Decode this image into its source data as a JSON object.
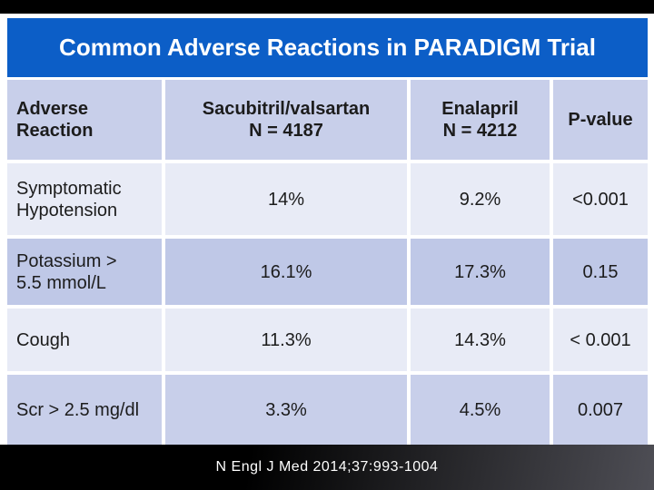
{
  "slide": {
    "title": "Common Adverse Reactions in PARADIGM Trial",
    "citation": "N Engl J Med 2014;37:993-1004"
  },
  "colors": {
    "page_bg": "#FFFFFF",
    "top_bar_bg": "#000000",
    "title_bar_bg": "#0C5EC7",
    "title_text": "#FFFFFF",
    "header_row_bg": "#C8CFEA",
    "row_light_bg": "#E8EBF6",
    "row_dark_bg": "#BFC8E7",
    "cell_text": "#1C1C1C",
    "footer_bg_left": "#000000",
    "footer_bg_right": "#4E4E55",
    "footer_text": "#FFFFFF"
  },
  "table": {
    "header": {
      "adverse_reaction": "Adverse\nReaction",
      "sacubitril": "Sacubitril/valsartan\nN = 4187",
      "enalapril": "Enalapril\nN = 4212",
      "p_value": "P-value"
    },
    "rows": [
      {
        "label": "Symptomatic\nHypotension",
        "sacubitril": "14%",
        "enalapril": "9.2%",
        "p_value": "<0.001"
      },
      {
        "label": "Potassium >\n5.5 mmol/L",
        "sacubitril": "16.1%",
        "enalapril": "17.3%",
        "p_value": "0.15"
      },
      {
        "label": "Cough",
        "sacubitril": "11.3%",
        "enalapril": "14.3%",
        "p_value": "< 0.001"
      },
      {
        "label": "Scr > 2.5 mg/dl",
        "sacubitril": "3.3%",
        "enalapril": "4.5%",
        "p_value": "0.007"
      }
    ]
  }
}
